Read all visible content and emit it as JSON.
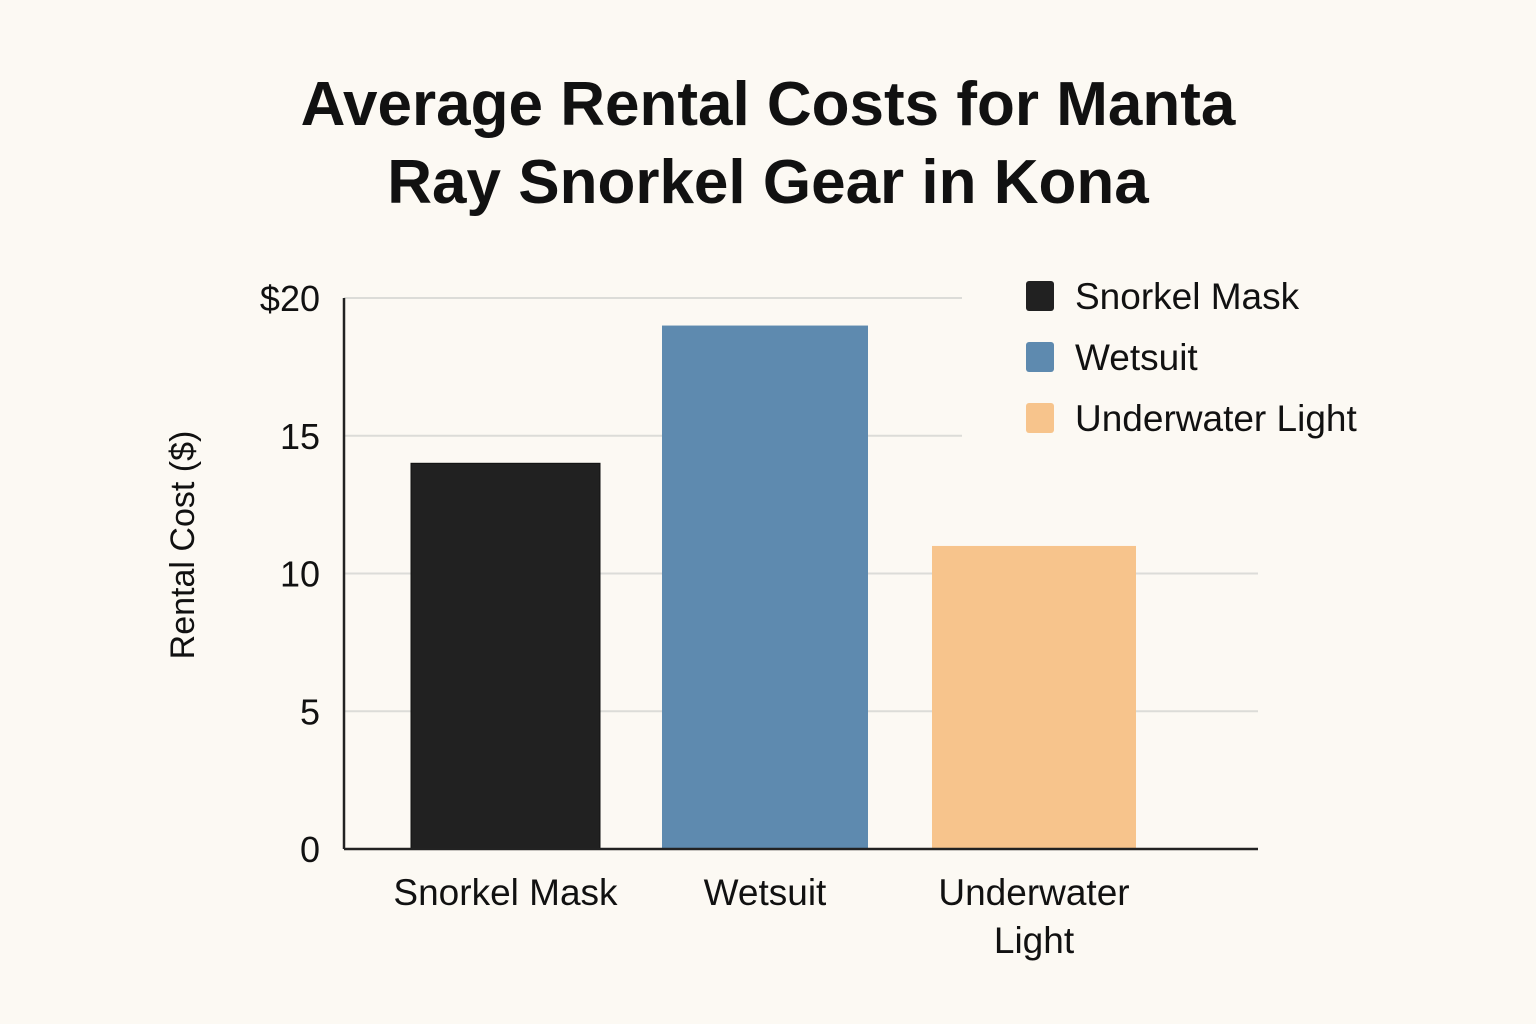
{
  "chart_data": {
    "type": "bar",
    "title": "Average Rental Costs for Manta Ray Snorkel Gear in Kona",
    "title_lines": [
      "Average Rental Costs for Manta",
      "Ray Snorkel Gear in Kona"
    ],
    "xlabel": "",
    "ylabel": "Rental Cost ($)",
    "categories": [
      "Snorkel Mask",
      "Wetsuit",
      "Underwater Light"
    ],
    "category_label_lines": [
      [
        "Snorkel Mask"
      ],
      [
        "Wetsuit"
      ],
      [
        "Underwater",
        "Light"
      ]
    ],
    "values": [
      14,
      19,
      11
    ],
    "colors": [
      "#212121",
      "#5e8aaf",
      "#f7c48c"
    ],
    "ylim": [
      0,
      20
    ],
    "yticks": [
      0,
      5,
      10,
      15,
      20
    ],
    "ytick_labels": [
      "0",
      "5",
      "10",
      "15",
      "$20"
    ],
    "grid": true,
    "legend": {
      "placement": "top-right",
      "entries": [
        "Snorkel Mask",
        "Wetsuit",
        "Underwater Light"
      ]
    }
  }
}
